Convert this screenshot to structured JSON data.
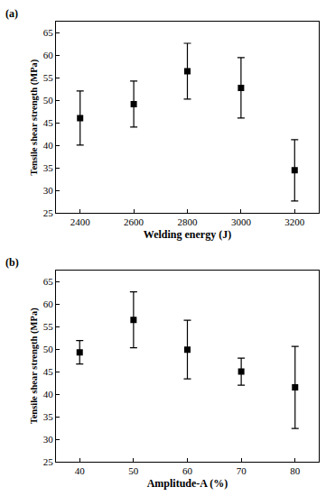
{
  "chart_data": [
    {
      "type": "scatter",
      "title": "(a)",
      "x_label": "Welding energy (J)",
      "y_label": "Tensile shear strength (MPa)",
      "x": [
        2400,
        2600,
        2800,
        3000,
        3200
      ],
      "values": [
        46.1,
        49.2,
        56.5,
        52.8,
        34.5
      ],
      "errors": [
        6.0,
        5.1,
        6.2,
        6.7,
        6.8
      ],
      "xlim": [
        2310,
        3290
      ],
      "xticks": [
        2400,
        2600,
        2800,
        3000,
        3200
      ],
      "ylim": [
        25,
        67.5
      ],
      "yticks": [
        25,
        30,
        35,
        40,
        45,
        50,
        55,
        60,
        65
      ],
      "marker": "square",
      "color": "#000000",
      "grid": false
    },
    {
      "type": "scatter",
      "title": "(b)",
      "x_label": "Amplitude-A (%)",
      "y_label": "Tensile shear strength (MPa)",
      "x": [
        40,
        50,
        60,
        70,
        80
      ],
      "values": [
        49.3,
        56.5,
        49.9,
        45.0,
        41.5
      ],
      "errors": [
        2.6,
        6.2,
        6.5,
        3.0,
        9.1
      ],
      "xlim": [
        35.6,
        84.4
      ],
      "xticks": [
        40,
        50,
        60,
        70,
        80
      ],
      "ylim": [
        25,
        67.5
      ],
      "yticks": [
        25,
        30,
        35,
        40,
        45,
        50,
        55,
        60,
        65
      ],
      "marker": "square",
      "color": "#000000",
      "grid": false
    }
  ]
}
